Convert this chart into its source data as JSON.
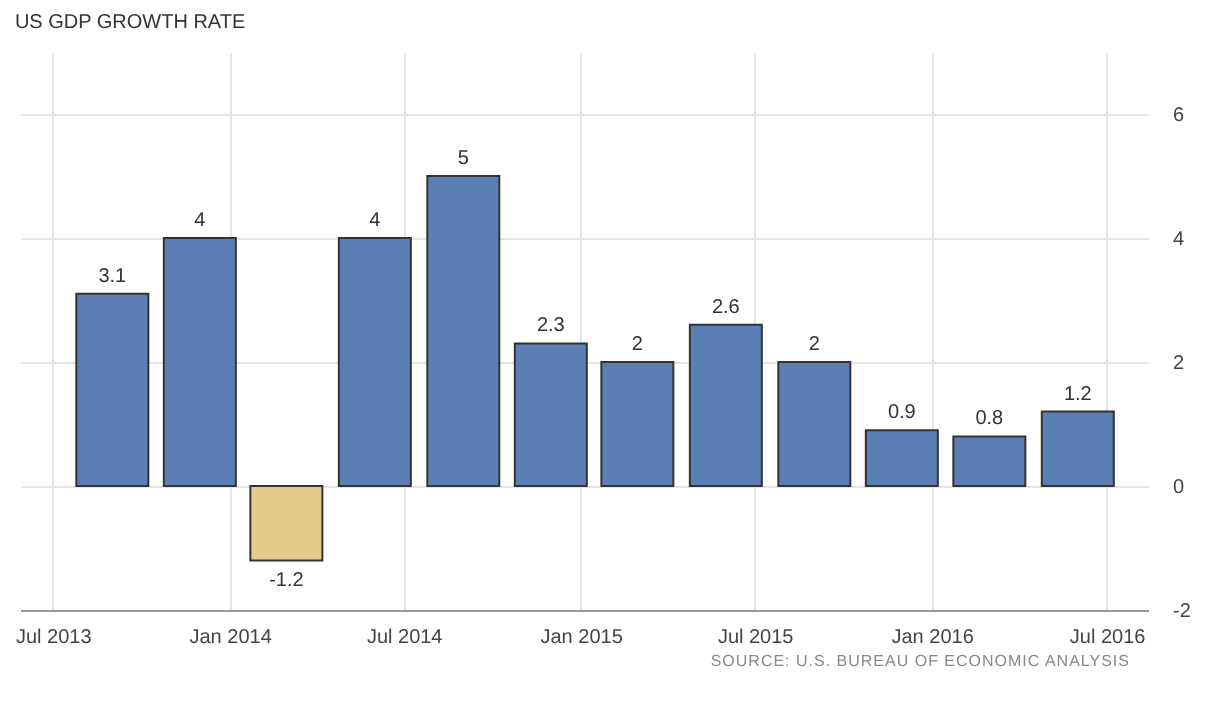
{
  "chart_data": {
    "type": "bar",
    "title": "US GDP GROWTH RATE",
    "x": [
      "2013-09-01",
      "2013-12-01",
      "2014-03-01",
      "2014-06-01",
      "2014-09-01",
      "2014-12-01",
      "2015-03-01",
      "2015-06-01",
      "2015-09-01",
      "2015-12-01",
      "2016-03-01",
      "2016-06-01"
    ],
    "values": [
      3.1,
      4,
      -1.2,
      4,
      5,
      2.3,
      2,
      2.6,
      2,
      0.9,
      0.8,
      1.2
    ],
    "colors": [
      "#5b7fb5",
      "#5b7fb5",
      "#e6c98c",
      "#5b7fb5",
      "#5b7fb5",
      "#5b7fb5",
      "#5b7fb5",
      "#5b7fb5",
      "#5b7fb5",
      "#5b7fb5",
      "#5b7fb5",
      "#5b7fb5"
    ],
    "data_labels": true,
    "xlim": [
      "2013-05-28",
      "2016-08-13"
    ],
    "xticks": [
      {
        "value": "2013-07-01",
        "label": "Jul 2013"
      },
      {
        "value": "2014-01-01",
        "label": "Jan 2014"
      },
      {
        "value": "2014-07-01",
        "label": "Jul 2014"
      },
      {
        "value": "2015-01-01",
        "label": "Jan 2015"
      },
      {
        "value": "2015-07-01",
        "label": "Jul 2015"
      },
      {
        "value": "2016-01-01",
        "label": "Jan 2016"
      },
      {
        "value": "2016-07-01",
        "label": "Jul 2016"
      }
    ],
    "ylim": [
      -2,
      7
    ],
    "yticks": [
      -2,
      0,
      2,
      4,
      6
    ],
    "grid": true,
    "annotations": [
      "SOURCE: U.S. BUREAU OF ECONOMIC ANALYSIS"
    ]
  }
}
